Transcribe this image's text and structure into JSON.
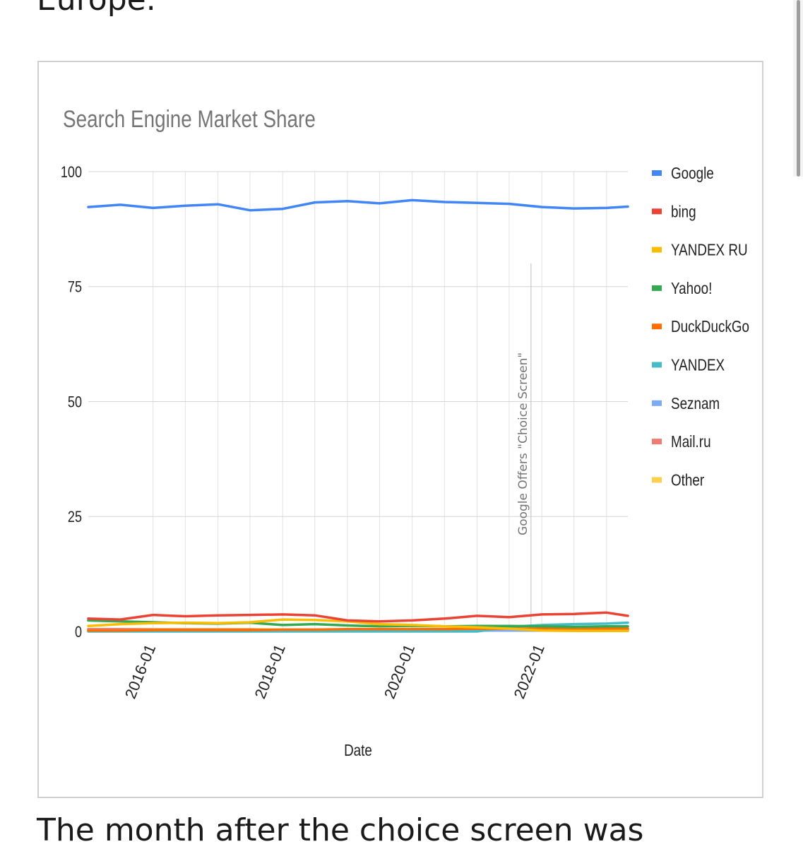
{
  "article": {
    "text_above": "Europe.",
    "text_below": "The month after the choice screen was"
  },
  "chart_data": {
    "type": "line",
    "title": "Search Engine Market Share",
    "xlabel": "Date",
    "ylabel": "",
    "ylim": [
      0,
      100
    ],
    "yticks": [
      "0",
      "25",
      "50",
      "75",
      "100"
    ],
    "xlim": [
      "2015-01",
      "2023-05"
    ],
    "xticks": [
      "2016-01",
      "2018-01",
      "2020-01",
      "2022-01"
    ],
    "grid": true,
    "legend_position": "right",
    "annotation": {
      "x": "2021-11",
      "label": "Google Offers \"Choice Screen\""
    },
    "x": [
      "2015-01",
      "2015-07",
      "2016-01",
      "2016-07",
      "2017-01",
      "2017-07",
      "2018-01",
      "2018-07",
      "2019-01",
      "2019-07",
      "2020-01",
      "2020-07",
      "2021-01",
      "2021-07",
      "2022-01",
      "2022-07",
      "2023-01",
      "2023-05"
    ],
    "series": [
      {
        "name": "Google",
        "color": "#4285f4",
        "values": [
          92.3,
          92.8,
          92.1,
          92.6,
          92.9,
          91.6,
          91.9,
          93.3,
          93.6,
          93.1,
          93.8,
          93.4,
          93.2,
          93.0,
          92.3,
          92.0,
          92.1,
          92.4
        ]
      },
      {
        "name": "bing",
        "color": "#ea4335",
        "values": [
          2.8,
          2.6,
          3.6,
          3.3,
          3.5,
          3.6,
          3.7,
          3.5,
          2.4,
          2.2,
          2.4,
          2.8,
          3.4,
          3.1,
          3.7,
          3.8,
          4.1,
          3.4
        ]
      },
      {
        "name": "YANDEX RU",
        "color": "#fbbc04",
        "values": [
          1.2,
          1.6,
          1.8,
          1.9,
          1.8,
          2.0,
          2.6,
          2.5,
          2.2,
          1.6,
          1.4,
          1.1,
          0.9,
          0.6,
          0.2,
          0.1,
          0.1,
          0.1
        ]
      },
      {
        "name": "Yahoo!",
        "color": "#34a853",
        "values": [
          2.4,
          2.2,
          2.0,
          1.8,
          1.7,
          1.9,
          1.4,
          1.6,
          1.3,
          1.1,
          1.2,
          1.1,
          1.2,
          1.2,
          1.1,
          1.0,
          1.1,
          1.1
        ]
      },
      {
        "name": "DuckDuckGo",
        "color": "#ff6d01",
        "values": [
          0.2,
          0.2,
          0.3,
          0.3,
          0.3,
          0.3,
          0.4,
          0.4,
          0.5,
          0.5,
          0.5,
          0.5,
          0.6,
          0.6,
          0.6,
          0.6,
          0.6,
          0.6
        ]
      },
      {
        "name": "YANDEX",
        "color": "#46bdc6",
        "values": [
          0.0,
          0.0,
          0.0,
          0.0,
          0.0,
          0.0,
          0.0,
          0.0,
          0.0,
          0.0,
          0.0,
          0.0,
          0.0,
          1.0,
          1.4,
          1.6,
          1.7,
          1.9
        ]
      },
      {
        "name": "Seznam",
        "color": "#7baaf7",
        "values": [
          0.2,
          0.2,
          0.2,
          0.2,
          0.2,
          0.2,
          0.2,
          0.2,
          0.2,
          0.2,
          0.2,
          0.2,
          0.2,
          0.2,
          0.2,
          0.2,
          0.2,
          0.2
        ]
      },
      {
        "name": "Mail.ru",
        "color": "#f07b72",
        "values": [
          0.5,
          0.5,
          0.4,
          0.4,
          0.4,
          0.4,
          0.3,
          0.3,
          0.3,
          0.3,
          0.3,
          0.3,
          0.2,
          0.2,
          0.2,
          0.2,
          0.2,
          0.2
        ]
      },
      {
        "name": "Other",
        "color": "#fcd04f",
        "values": [
          0.5,
          0.5,
          0.5,
          0.5,
          0.5,
          0.5,
          0.4,
          0.4,
          0.4,
          0.4,
          0.4,
          0.4,
          0.4,
          0.4,
          0.4,
          0.4,
          0.4,
          0.4
        ]
      }
    ]
  }
}
